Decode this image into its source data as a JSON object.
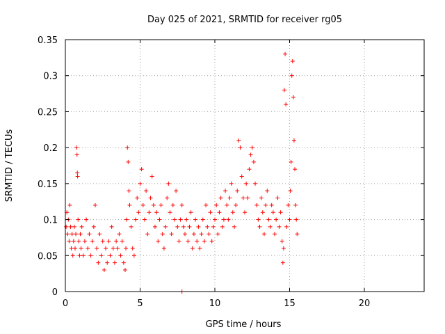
{
  "chart_data": {
    "type": "scatter",
    "title": "Day 025 of 2021, SRMTID for receiver rg05",
    "xlabel": "GPS time / hours",
    "ylabel": "SRMTID / TECUs",
    "xlim": [
      0,
      24
    ],
    "ylim": [
      0,
      0.35
    ],
    "x_ticks": [
      0,
      5,
      10,
      15,
      20
    ],
    "y_ticks": [
      0,
      0.05,
      0.1,
      0.15,
      0.2,
      0.25,
      0.3,
      0.35
    ],
    "x_tick_labels": [
      "0",
      "5",
      "10",
      "15",
      "20"
    ],
    "y_tick_labels": [
      "0",
      "0.05",
      "0.1",
      "0.15",
      "0.2",
      "0.25",
      "0.3",
      "0.35"
    ],
    "grid": true,
    "marker": "+",
    "color": "#ff0000",
    "series": [
      {
        "points": [
          [
            0.05,
            0.09
          ],
          [
            0.1,
            0.11
          ],
          [
            0.15,
            0.08
          ],
          [
            0.2,
            0.1
          ],
          [
            0.25,
            0.07
          ],
          [
            0.3,
            0.12
          ],
          [
            0.35,
            0.09
          ],
          [
            0.4,
            0.06
          ],
          [
            0.45,
            0.08
          ],
          [
            0.5,
            0.05
          ],
          [
            0.55,
            0.07
          ],
          [
            0.6,
            0.09
          ],
          [
            0.65,
            0.06
          ],
          [
            0.7,
            0.08
          ],
          [
            0.75,
            0.2
          ],
          [
            0.78,
            0.19
          ],
          [
            0.8,
            0.165
          ],
          [
            0.82,
            0.16
          ],
          [
            0.85,
            0.1
          ],
          [
            0.9,
            0.07
          ],
          [
            0.95,
            0.05
          ],
          [
            1.0,
            0.08
          ],
          [
            1.05,
            0.06
          ],
          [
            1.1,
            0.09
          ],
          [
            1.2,
            0.05
          ],
          [
            1.3,
            0.07
          ],
          [
            1.4,
            0.1
          ],
          [
            1.5,
            0.06
          ],
          [
            1.6,
            0.08
          ],
          [
            1.7,
            0.05
          ],
          [
            1.8,
            0.07
          ],
          [
            1.9,
            0.09
          ],
          [
            2.0,
            0.12
          ],
          [
            2.1,
            0.06
          ],
          [
            2.2,
            0.04
          ],
          [
            2.3,
            0.08
          ],
          [
            2.4,
            0.05
          ],
          [
            2.5,
            0.07
          ],
          [
            2.6,
            0.03
          ],
          [
            2.7,
            0.06
          ],
          [
            2.8,
            0.04
          ],
          [
            2.9,
            0.07
          ],
          [
            3.0,
            0.05
          ],
          [
            3.1,
            0.09
          ],
          [
            3.2,
            0.06
          ],
          [
            3.3,
            0.04
          ],
          [
            3.4,
            0.07
          ],
          [
            3.5,
            0.06
          ],
          [
            3.6,
            0.08
          ],
          [
            3.7,
            0.05
          ],
          [
            3.8,
            0.07
          ],
          [
            3.9,
            0.04
          ],
          [
            4.0,
            0.03
          ],
          [
            4.05,
            0.06
          ],
          [
            4.1,
            0.1
          ],
          [
            4.15,
            0.2
          ],
          [
            4.2,
            0.18
          ],
          [
            4.25,
            0.14
          ],
          [
            4.3,
            0.12
          ],
          [
            4.4,
            0.09
          ],
          [
            4.5,
            0.06
          ],
          [
            4.6,
            0.05
          ],
          [
            4.7,
            0.1
          ],
          [
            4.8,
            0.13
          ],
          [
            4.9,
            0.11
          ],
          [
            5.0,
            0.15
          ],
          [
            5.1,
            0.17
          ],
          [
            5.2,
            0.12
          ],
          [
            5.3,
            0.1
          ],
          [
            5.4,
            0.14
          ],
          [
            5.5,
            0.08
          ],
          [
            5.6,
            0.11
          ],
          [
            5.7,
            0.13
          ],
          [
            5.8,
            0.16
          ],
          [
            5.9,
            0.12
          ],
          [
            6.0,
            0.09
          ],
          [
            6.1,
            0.11
          ],
          [
            6.2,
            0.07
          ],
          [
            6.3,
            0.1
          ],
          [
            6.4,
            0.12
          ],
          [
            6.5,
            0.08
          ],
          [
            6.6,
            0.06
          ],
          [
            6.7,
            0.09
          ],
          [
            6.8,
            0.13
          ],
          [
            6.9,
            0.15
          ],
          [
            7.0,
            0.11
          ],
          [
            7.1,
            0.08
          ],
          [
            7.2,
            0.12
          ],
          [
            7.3,
            0.1
          ],
          [
            7.4,
            0.14
          ],
          [
            7.5,
            0.09
          ],
          [
            7.6,
            0.07
          ],
          [
            7.7,
            0.1
          ],
          [
            7.8,
            0.12
          ],
          [
            7.9,
            0.09
          ],
          [
            8.0,
            0.08
          ],
          [
            8.1,
            0.1
          ],
          [
            8.2,
            0.07
          ],
          [
            8.3,
            0.09
          ],
          [
            8.4,
            0.11
          ],
          [
            8.5,
            0.06
          ],
          [
            8.6,
            0.08
          ],
          [
            8.7,
            0.1
          ],
          [
            8.8,
            0.07
          ],
          [
            8.9,
            0.09
          ],
          [
            9.0,
            0.06
          ],
          [
            9.1,
            0.08
          ],
          [
            9.2,
            0.1
          ],
          [
            9.3,
            0.07
          ],
          [
            9.4,
            0.12
          ],
          [
            9.5,
            0.09
          ],
          [
            9.6,
            0.08
          ],
          [
            9.7,
            0.11
          ],
          [
            9.8,
            0.07
          ],
          [
            9.9,
            0.09
          ],
          [
            10.0,
            0.1
          ],
          [
            10.1,
            0.12
          ],
          [
            10.2,
            0.08
          ],
          [
            10.3,
            0.11
          ],
          [
            10.4,
            0.13
          ],
          [
            10.5,
            0.09
          ],
          [
            10.6,
            0.1
          ],
          [
            10.7,
            0.14
          ],
          [
            10.8,
            0.12
          ],
          [
            10.9,
            0.1
          ],
          [
            11.0,
            0.13
          ],
          [
            11.1,
            0.15
          ],
          [
            11.2,
            0.11
          ],
          [
            11.3,
            0.09
          ],
          [
            11.4,
            0.12
          ],
          [
            11.5,
            0.14
          ],
          [
            11.6,
            0.21
          ],
          [
            11.7,
            0.2
          ],
          [
            11.8,
            0.16
          ],
          [
            11.9,
            0.13
          ],
          [
            12.0,
            0.11
          ],
          [
            12.1,
            0.15
          ],
          [
            12.2,
            0.13
          ],
          [
            12.3,
            0.17
          ],
          [
            12.4,
            0.19
          ],
          [
            12.5,
            0.2
          ],
          [
            12.6,
            0.18
          ],
          [
            12.7,
            0.15
          ],
          [
            12.8,
            0.12
          ],
          [
            12.9,
            0.1
          ],
          [
            13.0,
            0.09
          ],
          [
            13.1,
            0.13
          ],
          [
            13.2,
            0.11
          ],
          [
            13.3,
            0.08
          ],
          [
            13.4,
            0.12
          ],
          [
            13.5,
            0.14
          ],
          [
            13.6,
            0.1
          ],
          [
            13.7,
            0.09
          ],
          [
            13.8,
            0.12
          ],
          [
            13.9,
            0.11
          ],
          [
            14.0,
            0.08
          ],
          [
            14.1,
            0.1
          ],
          [
            14.2,
            0.13
          ],
          [
            14.3,
            0.09
          ],
          [
            14.4,
            0.11
          ],
          [
            14.5,
            0.07
          ],
          [
            14.55,
            0.04
          ],
          [
            14.6,
            0.06
          ],
          [
            14.65,
            0.28
          ],
          [
            14.7,
            0.33
          ],
          [
            14.75,
            0.26
          ],
          [
            14.8,
            0.09
          ],
          [
            14.9,
            0.12
          ],
          [
            15.0,
            0.1
          ],
          [
            15.05,
            0.14
          ],
          [
            15.1,
            0.18
          ],
          [
            15.15,
            0.3
          ],
          [
            15.2,
            0.32
          ],
          [
            15.25,
            0.27
          ],
          [
            15.3,
            0.21
          ],
          [
            15.35,
            0.17
          ],
          [
            15.4,
            0.12
          ],
          [
            15.45,
            0.1
          ],
          [
            15.5,
            0.08
          ],
          [
            7.8,
            0.0
          ]
        ]
      }
    ]
  }
}
